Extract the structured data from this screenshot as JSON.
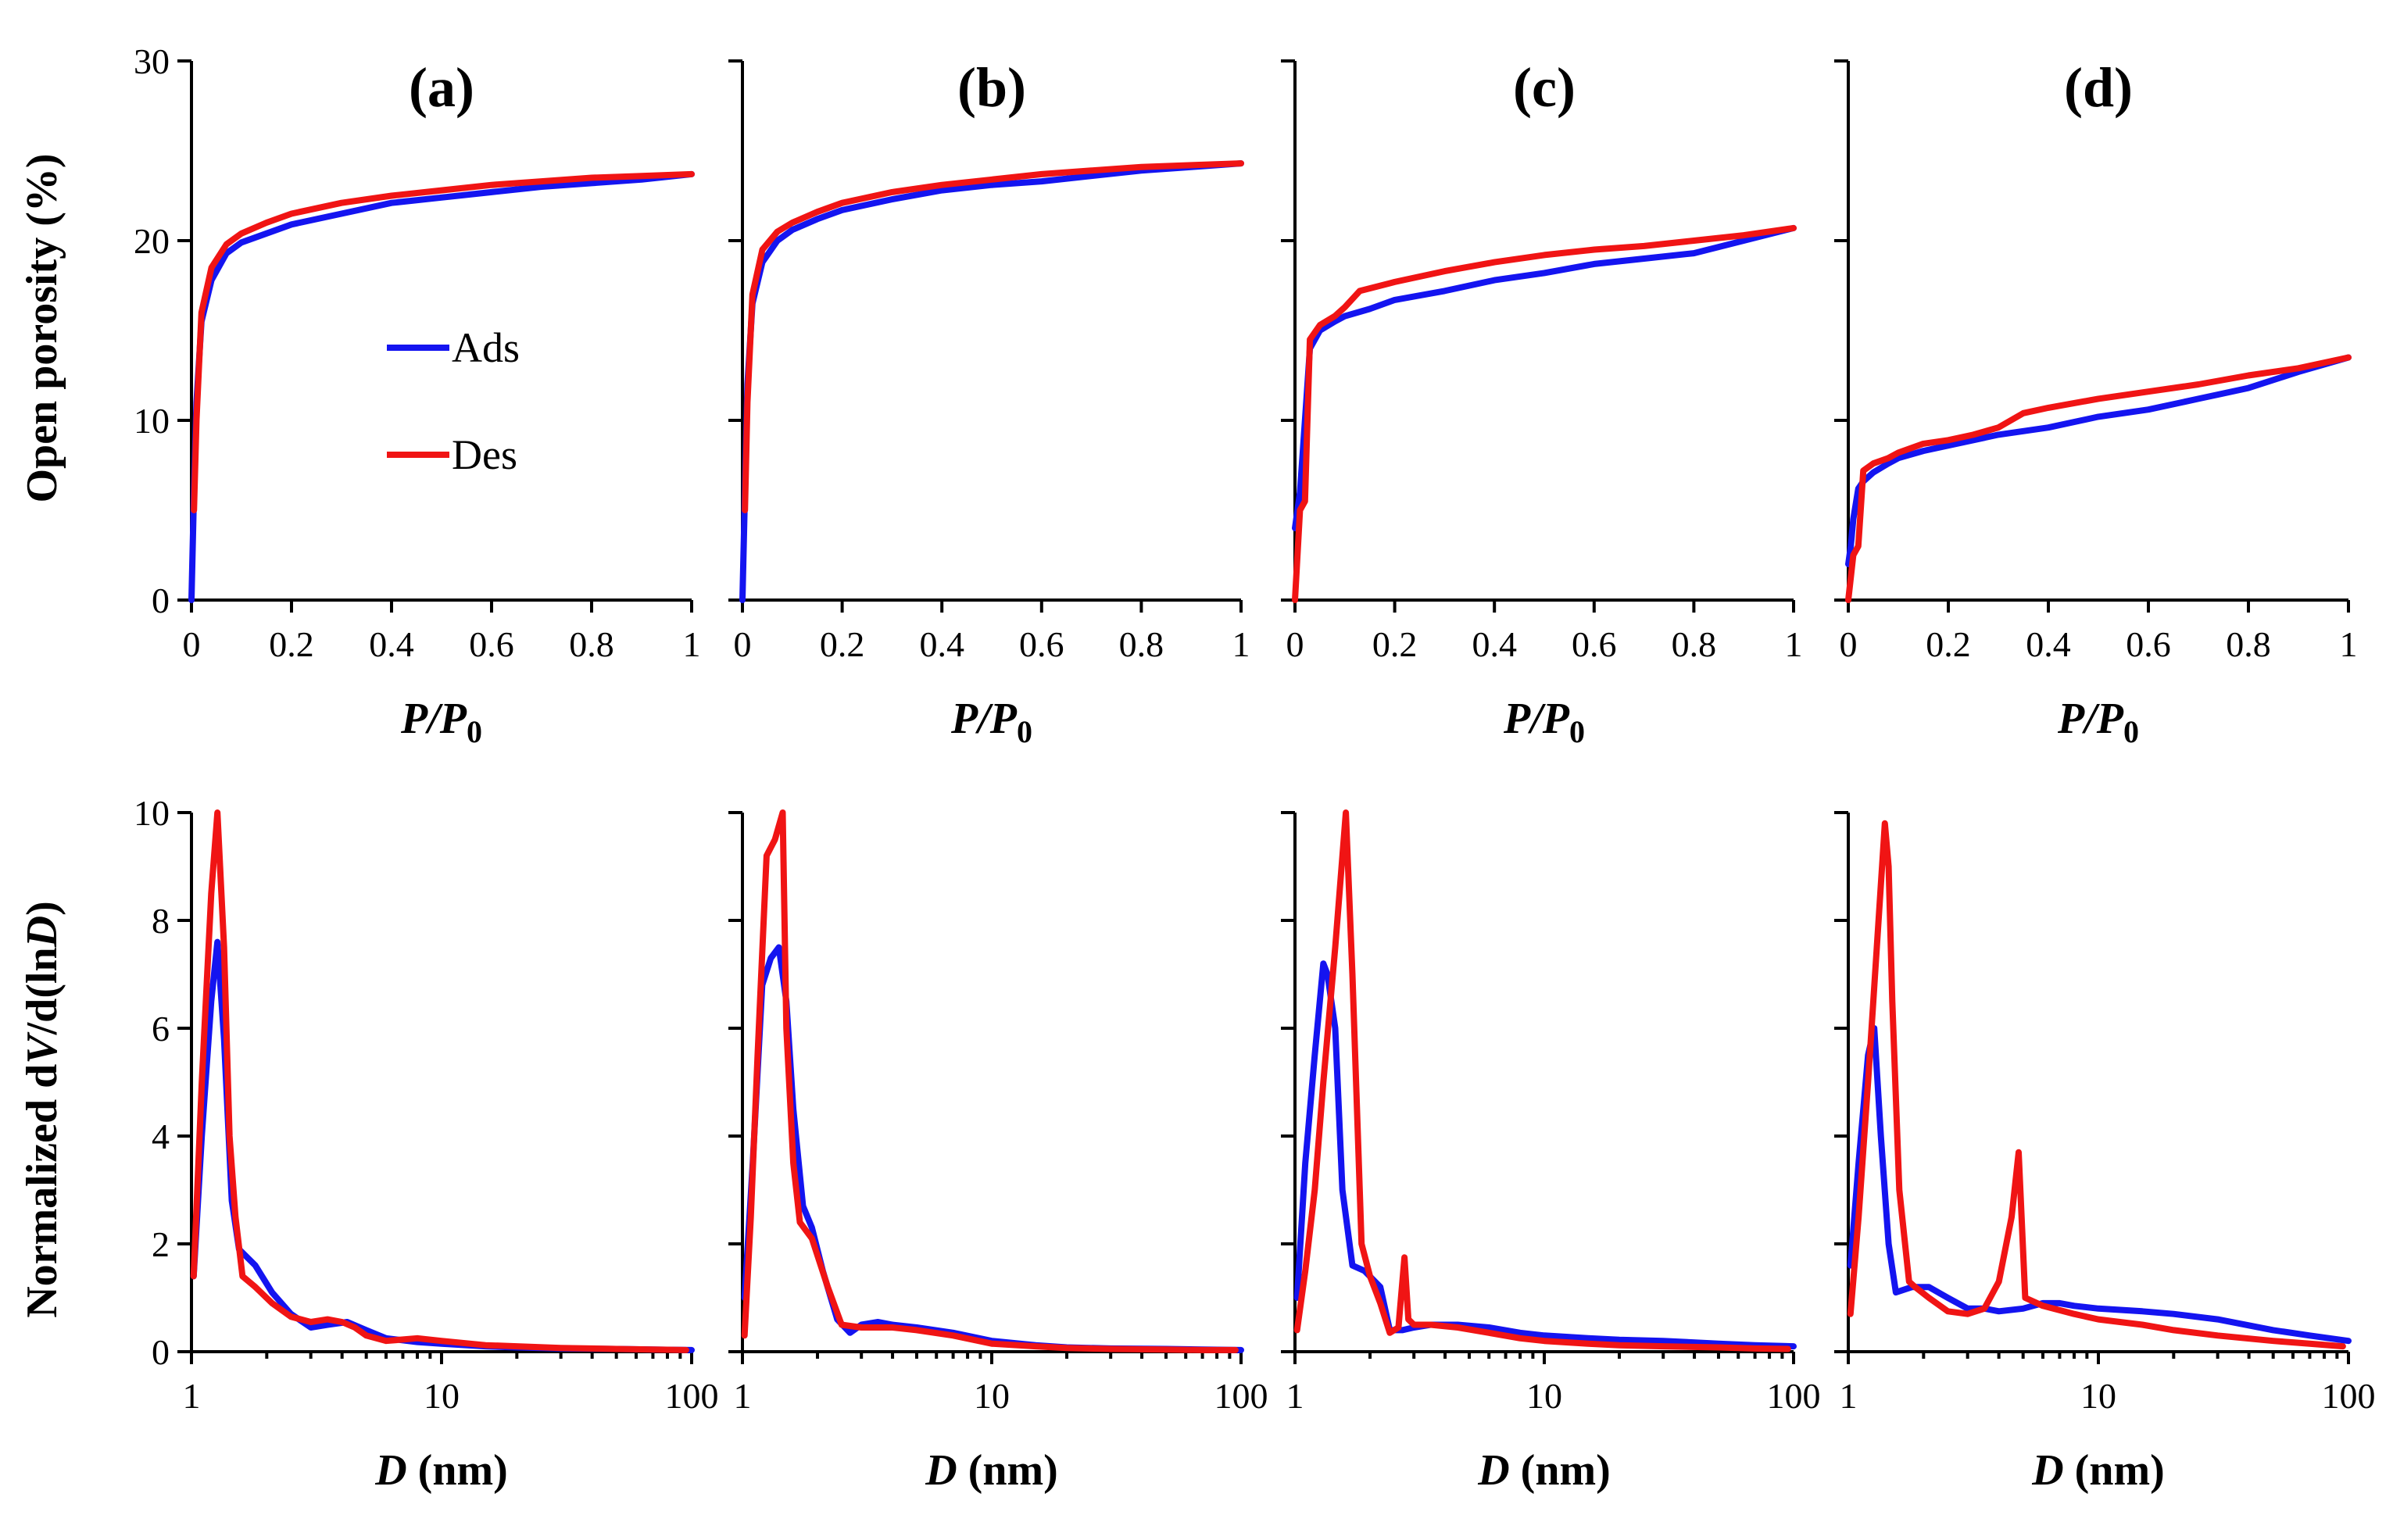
{
  "legend": [
    {
      "label": "Ads",
      "color": "#1414f0"
    },
    {
      "label": "Des",
      "color": "#f01414"
    }
  ],
  "top_axes": {
    "ylabel": "Open porosity (%)",
    "xlabel_main": "P",
    "xlabel_sub": "0",
    "xticks": [
      "0",
      "0.2",
      "0.4",
      "0.6",
      "0.8",
      "1"
    ],
    "yticks": [
      "0",
      "10",
      "20",
      "30"
    ],
    "xlim": [
      0,
      1
    ],
    "ylim": [
      0,
      30
    ]
  },
  "bottom_axes": {
    "ylabel_main": "Normalized d",
    "ylabel_v": "V",
    "ylabel_mid": "/d(ln",
    "ylabel_d": "D",
    "ylabel_end": ")",
    "xlabel_main": "D",
    "xlabel_unit": " (nm)",
    "xticks": [
      "1",
      "10",
      "100"
    ],
    "yticks": [
      "0",
      "2",
      "4",
      "6",
      "8",
      "10"
    ],
    "xscale": "log",
    "xlim": [
      1,
      100
    ],
    "ylim": [
      0,
      10
    ]
  },
  "panel_labels": [
    "(a)",
    "(b)",
    "(c)",
    "(d)"
  ],
  "chart_data": [
    {
      "type": "line",
      "panel": "(a)",
      "row": "top",
      "xlabel": "P/P0",
      "ylabel": "Open porosity (%)",
      "xlim": [
        0,
        1
      ],
      "ylim": [
        0,
        30
      ],
      "series": [
        {
          "name": "Ads",
          "x": [
            0,
            0.005,
            0.01,
            0.02,
            0.04,
            0.07,
            0.1,
            0.15,
            0.2,
            0.3,
            0.4,
            0.5,
            0.6,
            0.7,
            0.8,
            0.9,
            1.0
          ],
          "y": [
            0,
            6,
            11,
            15.5,
            17.8,
            19.3,
            19.9,
            20.4,
            20.9,
            21.5,
            22.1,
            22.4,
            22.7,
            23.0,
            23.2,
            23.4,
            23.7
          ]
        },
        {
          "name": "Des",
          "x": [
            0.005,
            0.01,
            0.02,
            0.04,
            0.07,
            0.1,
            0.15,
            0.2,
            0.3,
            0.4,
            0.5,
            0.6,
            0.7,
            0.8,
            0.9,
            1.0
          ],
          "y": [
            5,
            10,
            16,
            18.5,
            19.8,
            20.4,
            21.0,
            21.5,
            22.1,
            22.5,
            22.8,
            23.1,
            23.3,
            23.5,
            23.6,
            23.7
          ]
        }
      ]
    },
    {
      "type": "line",
      "panel": "(b)",
      "row": "top",
      "xlabel": "P/P0",
      "ylabel": "Open porosity (%)",
      "xlim": [
        0,
        1
      ],
      "ylim": [
        0,
        30
      ],
      "series": [
        {
          "name": "Ads",
          "x": [
            0,
            0.005,
            0.01,
            0.02,
            0.04,
            0.07,
            0.1,
            0.15,
            0.2,
            0.3,
            0.4,
            0.5,
            0.6,
            0.7,
            0.8,
            0.9,
            1.0
          ],
          "y": [
            0,
            6,
            12,
            16.5,
            18.8,
            20.0,
            20.6,
            21.2,
            21.7,
            22.3,
            22.8,
            23.1,
            23.3,
            23.6,
            23.9,
            24.1,
            24.3
          ]
        },
        {
          "name": "Des",
          "x": [
            0.005,
            0.01,
            0.02,
            0.04,
            0.07,
            0.1,
            0.15,
            0.2,
            0.3,
            0.4,
            0.5,
            0.6,
            0.7,
            0.8,
            0.9,
            1.0
          ],
          "y": [
            5,
            11,
            17,
            19.5,
            20.5,
            21.0,
            21.6,
            22.1,
            22.7,
            23.1,
            23.4,
            23.7,
            23.9,
            24.1,
            24.2,
            24.3
          ]
        }
      ]
    },
    {
      "type": "line",
      "panel": "(c)",
      "row": "top",
      "xlabel": "P/P0",
      "ylabel": "Open porosity (%)",
      "xlim": [
        0,
        1
      ],
      "ylim": [
        0,
        30
      ],
      "series": [
        {
          "name": "Ads",
          "x": [
            0,
            0.005,
            0.01,
            0.02,
            0.03,
            0.05,
            0.08,
            0.1,
            0.15,
            0.2,
            0.3,
            0.4,
            0.5,
            0.6,
            0.7,
            0.8,
            0.9,
            1.0
          ],
          "y": [
            4,
            5,
            6,
            10,
            14.0,
            15.0,
            15.5,
            15.8,
            16.2,
            16.7,
            17.2,
            17.8,
            18.2,
            18.7,
            19.0,
            19.3,
            20.0,
            20.7
          ]
        },
        {
          "name": "Des",
          "x": [
            0,
            0.01,
            0.02,
            0.03,
            0.05,
            0.08,
            0.1,
            0.13,
            0.2,
            0.3,
            0.4,
            0.5,
            0.6,
            0.7,
            0.8,
            0.9,
            1.0
          ],
          "y": [
            0,
            5,
            5.5,
            14.5,
            15.3,
            15.8,
            16.3,
            17.2,
            17.7,
            18.3,
            18.8,
            19.2,
            19.5,
            19.7,
            20.0,
            20.3,
            20.7
          ]
        }
      ]
    },
    {
      "type": "line",
      "panel": "(d)",
      "row": "top",
      "xlabel": "P/P0",
      "ylabel": "Open porosity (%)",
      "xlim": [
        0,
        1
      ],
      "ylim": [
        0,
        30
      ],
      "series": [
        {
          "name": "Ads",
          "x": [
            0,
            0.005,
            0.01,
            0.02,
            0.03,
            0.05,
            0.08,
            0.1,
            0.15,
            0.2,
            0.3,
            0.4,
            0.5,
            0.6,
            0.7,
            0.8,
            0.9,
            1.0
          ],
          "y": [
            2,
            3,
            4.5,
            6.2,
            6.6,
            7.1,
            7.6,
            7.9,
            8.3,
            8.6,
            9.2,
            9.6,
            10.2,
            10.6,
            11.2,
            11.8,
            12.7,
            13.5
          ]
        },
        {
          "name": "Des",
          "x": [
            0,
            0.01,
            0.02,
            0.03,
            0.05,
            0.08,
            0.1,
            0.15,
            0.2,
            0.25,
            0.3,
            0.35,
            0.4,
            0.5,
            0.6,
            0.7,
            0.8,
            0.9,
            1.0
          ],
          "y": [
            0,
            2.5,
            3,
            7.2,
            7.6,
            7.9,
            8.2,
            8.7,
            8.9,
            9.2,
            9.6,
            10.4,
            10.7,
            11.2,
            11.6,
            12.0,
            12.5,
            12.9,
            13.5
          ]
        }
      ]
    },
    {
      "type": "line",
      "panel": "(a)",
      "row": "bottom",
      "xlabel": "D (nm)",
      "ylabel": "Normalized dV/d(lnD)",
      "xscale": "log",
      "xlim": [
        1,
        100
      ],
      "ylim": [
        0,
        10
      ],
      "series": [
        {
          "name": "Ads",
          "x": [
            1.02,
            1.1,
            1.2,
            1.27,
            1.35,
            1.45,
            1.55,
            1.8,
            2.1,
            2.5,
            3.0,
            3.5,
            4.2,
            5.0,
            6.0,
            8.0,
            10,
            15,
            20,
            30,
            50,
            70,
            100
          ],
          "y": [
            1.4,
            4.0,
            6.5,
            7.6,
            5.8,
            2.8,
            1.9,
            1.6,
            1.1,
            0.7,
            0.45,
            0.5,
            0.55,
            0.4,
            0.25,
            0.18,
            0.15,
            0.1,
            0.08,
            0.06,
            0.05,
            0.04,
            0.03
          ]
        },
        {
          "name": "Des",
          "x": [
            1.02,
            1.1,
            1.2,
            1.27,
            1.35,
            1.42,
            1.5,
            1.6,
            1.8,
            2.1,
            2.5,
            3.0,
            3.5,
            4.0,
            4.5,
            5.0,
            6.0,
            8.0,
            10,
            15,
            20,
            30,
            50,
            70,
            95
          ],
          "y": [
            1.4,
            5.0,
            8.5,
            10.0,
            7.5,
            4.0,
            2.5,
            1.4,
            1.2,
            0.9,
            0.65,
            0.55,
            0.6,
            0.55,
            0.45,
            0.3,
            0.2,
            0.25,
            0.2,
            0.12,
            0.1,
            0.07,
            0.05,
            0.04,
            0.03
          ]
        }
      ]
    },
    {
      "type": "line",
      "panel": "(b)",
      "row": "bottom",
      "xlabel": "D (nm)",
      "ylabel": "Normalized dV/d(lnD)",
      "xscale": "log",
      "xlim": [
        1,
        100
      ],
      "ylim": [
        0,
        10
      ],
      "series": [
        {
          "name": "Ads",
          "x": [
            1.02,
            1.1,
            1.2,
            1.3,
            1.4,
            1.5,
            1.6,
            1.75,
            1.9,
            2.1,
            2.4,
            2.7,
            3.0,
            3.5,
            4.0,
            5.0,
            7.0,
            10,
            15,
            20,
            30,
            50,
            70,
            100
          ],
          "y": [
            1.0,
            3.5,
            6.8,
            7.3,
            7.5,
            6.5,
            4.5,
            2.7,
            2.3,
            1.5,
            0.6,
            0.35,
            0.5,
            0.55,
            0.5,
            0.45,
            0.35,
            0.2,
            0.12,
            0.08,
            0.06,
            0.05,
            0.04,
            0.03
          ]
        },
        {
          "name": "Des",
          "x": [
            1.02,
            1.08,
            1.15,
            1.25,
            1.35,
            1.45,
            1.5,
            1.6,
            1.7,
            1.9,
            2.2,
            2.5,
            3.0,
            3.5,
            4.0,
            5.0,
            7.0,
            10,
            15,
            20,
            30,
            50,
            70,
            95
          ],
          "y": [
            0.3,
            2.5,
            5.5,
            9.2,
            9.5,
            10.0,
            6.0,
            3.5,
            2.4,
            2.1,
            1.2,
            0.5,
            0.45,
            0.45,
            0.45,
            0.4,
            0.3,
            0.15,
            0.1,
            0.07,
            0.05,
            0.04,
            0.03,
            0.03
          ]
        }
      ]
    },
    {
      "type": "line",
      "panel": "(c)",
      "row": "bottom",
      "xlabel": "D (nm)",
      "ylabel": "Normalized dV/d(lnD)",
      "xscale": "log",
      "xlim": [
        1,
        100
      ],
      "ylim": [
        0,
        10
      ],
      "series": [
        {
          "name": "Ads",
          "x": [
            1.02,
            1.1,
            1.2,
            1.3,
            1.35,
            1.45,
            1.55,
            1.7,
            1.9,
            2.2,
            2.4,
            2.7,
            3.0,
            3.5,
            4.5,
            6.0,
            8.0,
            10,
            15,
            20,
            30,
            50,
            70,
            100
          ],
          "y": [
            1.0,
            3.5,
            5.5,
            7.2,
            7.0,
            6.0,
            3.0,
            1.6,
            1.5,
            1.2,
            0.4,
            0.4,
            0.45,
            0.5,
            0.5,
            0.45,
            0.35,
            0.3,
            0.25,
            0.22,
            0.2,
            0.15,
            0.12,
            0.1
          ]
        },
        {
          "name": "Des",
          "x": [
            1.02,
            1.1,
            1.2,
            1.3,
            1.45,
            1.6,
            1.7,
            1.85,
            2.0,
            2.2,
            2.4,
            2.6,
            2.75,
            2.85,
            3.0,
            3.5,
            4.5,
            6.0,
            8.0,
            10,
            15,
            20,
            30,
            50,
            70,
            95
          ],
          "y": [
            0.4,
            1.5,
            3.0,
            5.0,
            7.5,
            10.0,
            7.0,
            2.0,
            1.4,
            0.9,
            0.35,
            0.45,
            1.75,
            0.6,
            0.5,
            0.5,
            0.45,
            0.35,
            0.25,
            0.2,
            0.15,
            0.12,
            0.1,
            0.08,
            0.06,
            0.05
          ]
        }
      ]
    },
    {
      "type": "line",
      "panel": "(d)",
      "row": "bottom",
      "xlabel": "D (nm)",
      "ylabel": "Normalized dV/d(lnD)",
      "xscale": "log",
      "xlim": [
        1,
        100
      ],
      "ylim": [
        0,
        10
      ],
      "series": [
        {
          "name": "Ads",
          "x": [
            1.02,
            1.1,
            1.2,
            1.27,
            1.35,
            1.45,
            1.55,
            1.8,
            2.1,
            2.5,
            3.0,
            3.5,
            4.0,
            5.0,
            6.0,
            7.0,
            8.0,
            10,
            15,
            20,
            30,
            50,
            70,
            100
          ],
          "y": [
            1.6,
            3.5,
            5.5,
            6.0,
            4.0,
            2.0,
            1.1,
            1.2,
            1.2,
            1.0,
            0.8,
            0.8,
            0.75,
            0.8,
            0.9,
            0.9,
            0.85,
            0.8,
            0.75,
            0.7,
            0.6,
            0.4,
            0.3,
            0.2
          ]
        },
        {
          "name": "Des",
          "x": [
            1.02,
            1.1,
            1.2,
            1.3,
            1.4,
            1.45,
            1.5,
            1.6,
            1.75,
            1.85,
            2.1,
            2.5,
            3.0,
            3.5,
            4.0,
            4.5,
            4.8,
            5.1,
            6.0,
            8.0,
            10,
            15,
            20,
            30,
            50,
            70,
            95
          ],
          "y": [
            0.7,
            2.5,
            5.0,
            7.5,
            9.8,
            9.0,
            6.5,
            3.0,
            1.3,
            1.2,
            1.0,
            0.75,
            0.7,
            0.8,
            1.3,
            2.5,
            3.7,
            1.0,
            0.85,
            0.7,
            0.6,
            0.5,
            0.4,
            0.3,
            0.2,
            0.15,
            0.1
          ]
        }
      ]
    }
  ]
}
